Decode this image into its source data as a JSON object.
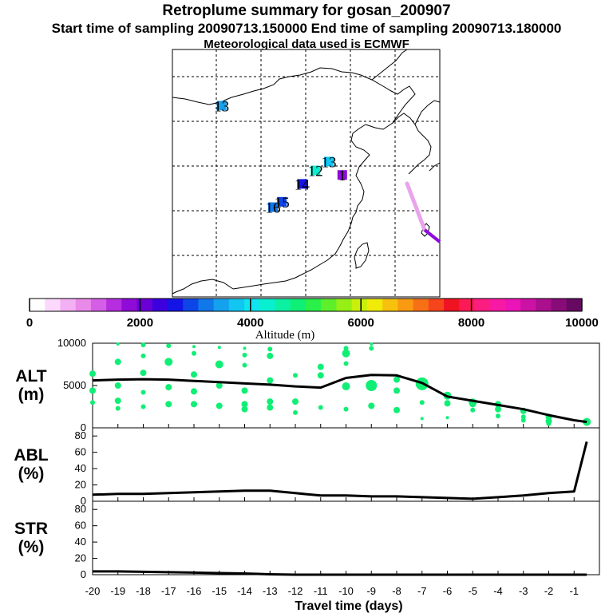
{
  "header": {
    "title": "Retroplume summary for gosan_200907",
    "sampling": "Start time of sampling 20090713.150000     End time of sampling 20090713.180000",
    "met": "Meteorological data used is ECMWF"
  },
  "map": {
    "labels": [
      {
        "text": "13",
        "lon": 101,
        "lat": 43.5
      },
      {
        "text": "13",
        "lon": 125,
        "lat": 31
      },
      {
        "text": "12",
        "lon": 122,
        "lat": 29
      },
      {
        "text": "14",
        "lon": 119,
        "lat": 26
      },
      {
        "text": "15",
        "lon": 114.5,
        "lat": 22
      },
      {
        "text": "16",
        "lon": 112.5,
        "lat": 20.8
      },
      {
        "text": "1",
        "lon": 128,
        "lat": 28
      }
    ]
  },
  "colorbar": {
    "label": "Altitude (m)",
    "ticks": [
      "0",
      "2000",
      "4000",
      "6000",
      "8000",
      "10000"
    ],
    "colors": [
      "#ffffff",
      "#fcd9fc",
      "#f4b0f4",
      "#e98ae9",
      "#d45fe6",
      "#b62ee0",
      "#8e0bd8",
      "#6a00d6",
      "#3b00dd",
      "#1414e6",
      "#0c46e9",
      "#1178ea",
      "#14a2ef",
      "#12c6f2",
      "#0fe4ef",
      "#08f0cf",
      "#0cf0a4",
      "#10ef75",
      "#2af04a",
      "#5df02a",
      "#96ef15",
      "#c8f00b",
      "#f0eb08",
      "#f7c20d",
      "#f99a12",
      "#f87016",
      "#f6451d",
      "#f01423",
      "#fb1a56",
      "#fb1d80",
      "#f81aa4",
      "#ea14b8",
      "#cc12a4",
      "#aa0f8e",
      "#870c78",
      "#660960"
    ]
  },
  "chart_data": [
    {
      "type": "scatter",
      "title": "ALT (m)",
      "xlabel": "Travel time (days)",
      "xlim": [
        -20,
        0
      ],
      "ylim": [
        0,
        10000
      ],
      "yticks": [
        "10000",
        "5000",
        "0"
      ],
      "x": [
        -20,
        -19,
        -18,
        -17,
        -16,
        -15,
        -14,
        -13,
        -12,
        -11,
        -10,
        -9,
        -8,
        -7,
        -6,
        -5,
        -4,
        -3,
        -2,
        -1,
        -0.5
      ],
      "series": [
        {
          "name": "mean altitude",
          "values": [
            5600,
            5700,
            5750,
            5700,
            5550,
            5400,
            5250,
            5100,
            4900,
            4750,
            5900,
            6250,
            6200,
            5300,
            3700,
            3200,
            2700,
            2200,
            1500,
            900,
            700
          ]
        }
      ],
      "plume_points": [
        {
          "x": -20,
          "y": 6400,
          "s": 4
        },
        {
          "x": -20,
          "y": 4400,
          "s": 4
        },
        {
          "x": -20,
          "y": 3000,
          "s": 3
        },
        {
          "x": -19,
          "y": 9900,
          "s": 2
        },
        {
          "x": -19,
          "y": 7800,
          "s": 4
        },
        {
          "x": -19,
          "y": 5000,
          "s": 4
        },
        {
          "x": -19,
          "y": 3200,
          "s": 4
        },
        {
          "x": -19,
          "y": 2300,
          "s": 3
        },
        {
          "x": -18,
          "y": 9800,
          "s": 3
        },
        {
          "x": -18,
          "y": 8500,
          "s": 3
        },
        {
          "x": -18,
          "y": 6500,
          "s": 4
        },
        {
          "x": -18,
          "y": 4200,
          "s": 3
        },
        {
          "x": -18,
          "y": 2500,
          "s": 3
        },
        {
          "x": -17,
          "y": 9700,
          "s": 3
        },
        {
          "x": -17,
          "y": 7800,
          "s": 5
        },
        {
          "x": -17,
          "y": 4800,
          "s": 4
        },
        {
          "x": -17,
          "y": 2800,
          "s": 4
        },
        {
          "x": -16,
          "y": 9600,
          "s": 2
        },
        {
          "x": -16,
          "y": 8800,
          "s": 3
        },
        {
          "x": -16,
          "y": 6300,
          "s": 4
        },
        {
          "x": -16,
          "y": 4300,
          "s": 4
        },
        {
          "x": -16,
          "y": 2800,
          "s": 4
        },
        {
          "x": -15,
          "y": 9500,
          "s": 2
        },
        {
          "x": -15,
          "y": 7500,
          "s": 5
        },
        {
          "x": -15,
          "y": 5000,
          "s": 4
        },
        {
          "x": -15,
          "y": 2600,
          "s": 4
        },
        {
          "x": -14,
          "y": 9400,
          "s": 2
        },
        {
          "x": -14,
          "y": 8600,
          "s": 3
        },
        {
          "x": -14,
          "y": 7400,
          "s": 3
        },
        {
          "x": -14,
          "y": 4400,
          "s": 4
        },
        {
          "x": -14,
          "y": 2800,
          "s": 4
        },
        {
          "x": -14,
          "y": 2200,
          "s": 4
        },
        {
          "x": -13,
          "y": 9300,
          "s": 3
        },
        {
          "x": -13,
          "y": 8500,
          "s": 4
        },
        {
          "x": -13,
          "y": 5600,
          "s": 4
        },
        {
          "x": -13,
          "y": 3100,
          "s": 4
        },
        {
          "x": -13,
          "y": 2400,
          "s": 4
        },
        {
          "x": -12,
          "y": 6200,
          "s": 3
        },
        {
          "x": -12,
          "y": 3100,
          "s": 4
        },
        {
          "x": -12,
          "y": 1800,
          "s": 3
        },
        {
          "x": -11,
          "y": 7200,
          "s": 4
        },
        {
          "x": -11,
          "y": 6200,
          "s": 4
        },
        {
          "x": -11,
          "y": 2400,
          "s": 3
        },
        {
          "x": -10,
          "y": 9400,
          "s": 3
        },
        {
          "x": -10,
          "y": 8800,
          "s": 5
        },
        {
          "x": -10,
          "y": 7600,
          "s": 3
        },
        {
          "x": -10,
          "y": 4900,
          "s": 5
        },
        {
          "x": -10,
          "y": 2200,
          "s": 3
        },
        {
          "x": -9,
          "y": 9900,
          "s": 2
        },
        {
          "x": -9,
          "y": 9400,
          "s": 3
        },
        {
          "x": -9,
          "y": 5000,
          "s": 7
        },
        {
          "x": -9,
          "y": 2600,
          "s": 4
        },
        {
          "x": -8,
          "y": 5700,
          "s": 4
        },
        {
          "x": -8,
          "y": 4400,
          "s": 4
        },
        {
          "x": -8,
          "y": 2100,
          "s": 4
        },
        {
          "x": -7,
          "y": 5200,
          "s": 8
        },
        {
          "x": -7,
          "y": 3000,
          "s": 3
        },
        {
          "x": -7,
          "y": 1100,
          "s": 2
        },
        {
          "x": -6,
          "y": 3800,
          "s": 5
        },
        {
          "x": -6,
          "y": 2900,
          "s": 4
        },
        {
          "x": -6,
          "y": 1200,
          "s": 2
        },
        {
          "x": -5,
          "y": 3000,
          "s": 5
        },
        {
          "x": -5,
          "y": 2800,
          "s": 4
        },
        {
          "x": -5,
          "y": 2100,
          "s": 3
        },
        {
          "x": -4,
          "y": 2800,
          "s": 4
        },
        {
          "x": -4,
          "y": 2200,
          "s": 4
        },
        {
          "x": -4,
          "y": 1400,
          "s": 3
        },
        {
          "x": -3,
          "y": 2000,
          "s": 4
        },
        {
          "x": -3,
          "y": 1300,
          "s": 3
        },
        {
          "x": -3,
          "y": 900,
          "s": 3
        },
        {
          "x": -2,
          "y": 1300,
          "s": 4
        },
        {
          "x": -2,
          "y": 800,
          "s": 4
        },
        {
          "x": -2,
          "y": 500,
          "s": 3
        },
        {
          "x": -0.5,
          "y": 700,
          "s": 5
        }
      ]
    },
    {
      "type": "line",
      "title": "ABL (%)",
      "xlim": [
        -20,
        0
      ],
      "ylim": [
        0,
        90
      ],
      "yticks": [
        "0",
        "20",
        "40",
        "60",
        "80"
      ],
      "x": [
        -20,
        -19,
        -18,
        -17,
        -16,
        -15,
        -14,
        -13,
        -12,
        -11,
        -10,
        -9,
        -8,
        -7,
        -6,
        -5,
        -4,
        -3,
        -2,
        -1,
        -0.5
      ],
      "series": [
        {
          "name": "ABL",
          "values": [
            8,
            9,
            9,
            10,
            11,
            12,
            13,
            13,
            10,
            7,
            7,
            6,
            6,
            5,
            4,
            3,
            5,
            7,
            10,
            12,
            73
          ]
        }
      ]
    },
    {
      "type": "line",
      "title": "STR (%)",
      "xlabel": "Travel time (days)",
      "xlim": [
        -20,
        0
      ],
      "ylim": [
        0,
        90
      ],
      "yticks": [
        "0",
        "20",
        "40",
        "60",
        "80"
      ],
      "xticks": [
        "-20",
        "-19",
        "-18",
        "-17",
        "-16",
        "-15",
        "-14",
        "-13",
        "-12",
        "-11",
        "-10",
        "-9",
        "-8",
        "-7",
        "-6",
        "-5",
        "-4",
        "-3",
        "-2",
        "-1"
      ],
      "x": [
        -20,
        -19,
        -18,
        -17,
        -16,
        -15,
        -14,
        -13,
        -12,
        -11,
        -10,
        -9,
        -8,
        -7,
        -6,
        -5,
        -4,
        -3,
        -2,
        -1,
        -0.5
      ],
      "series": [
        {
          "name": "STR",
          "values": [
            4,
            4,
            3.5,
            3,
            2.5,
            2,
            1.5,
            0.5,
            0,
            0,
            0,
            0,
            0,
            0,
            0,
            0,
            0,
            0,
            0,
            0,
            0
          ]
        }
      ]
    }
  ]
}
